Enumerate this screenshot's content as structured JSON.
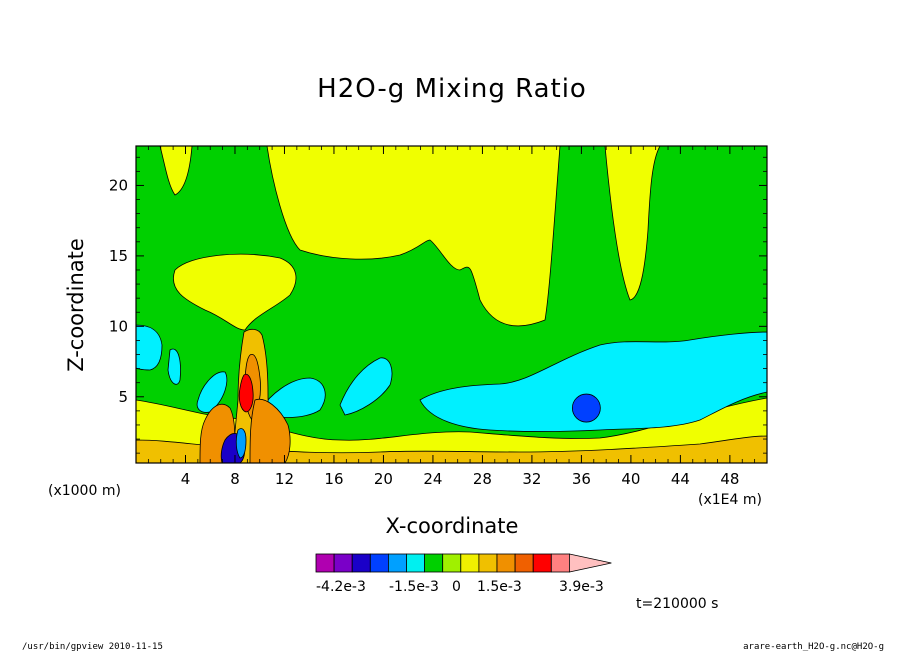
{
  "chart_data": {
    "type": "heatmap",
    "title": "H2O-g Mixing Ratio",
    "xlabel": "X-coordinate",
    "ylabel": "Z-coordinate",
    "x_unit_left": "(x1000 m)",
    "x_unit_right": "(x1E4 m)",
    "x_ticks": [
      "4",
      "8",
      "12",
      "16",
      "20",
      "24",
      "28",
      "32",
      "36",
      "40",
      "44",
      "48"
    ],
    "y_ticks": [
      "5",
      "10",
      "15",
      "20"
    ],
    "xlim": [
      0,
      51
    ],
    "ylim": [
      0.3,
      22.8
    ],
    "colorbar": {
      "colors": [
        "#b000b0",
        "#7a00c8",
        "#1a00c8",
        "#0040ff",
        "#00a0ff",
        "#00f0f0",
        "#00d000",
        "#a0f000",
        "#f0f000",
        "#f0c000",
        "#f09000",
        "#f06000",
        "#ff0000",
        "#ff8080",
        "#ffc0c0"
      ],
      "labels": [
        "-4.2e-3",
        "-1.5e-3",
        "0",
        "1.5e-3",
        "3.9e-3"
      ]
    },
    "time": "t=210000 s",
    "regions": [
      {
        "name": "background",
        "level": "green"
      },
      {
        "name": "upper-yellow-plume",
        "level": "yellow"
      },
      {
        "name": "cyan-anomaly",
        "level": "cyan"
      },
      {
        "name": "blue-core",
        "level": "blue"
      },
      {
        "name": "red-plume",
        "level": "red"
      }
    ]
  },
  "footer": {
    "left": "/usr/bin/gpview   2010-11-15",
    "right": "arare-earth_H2O-g.nc@H2O-g"
  }
}
